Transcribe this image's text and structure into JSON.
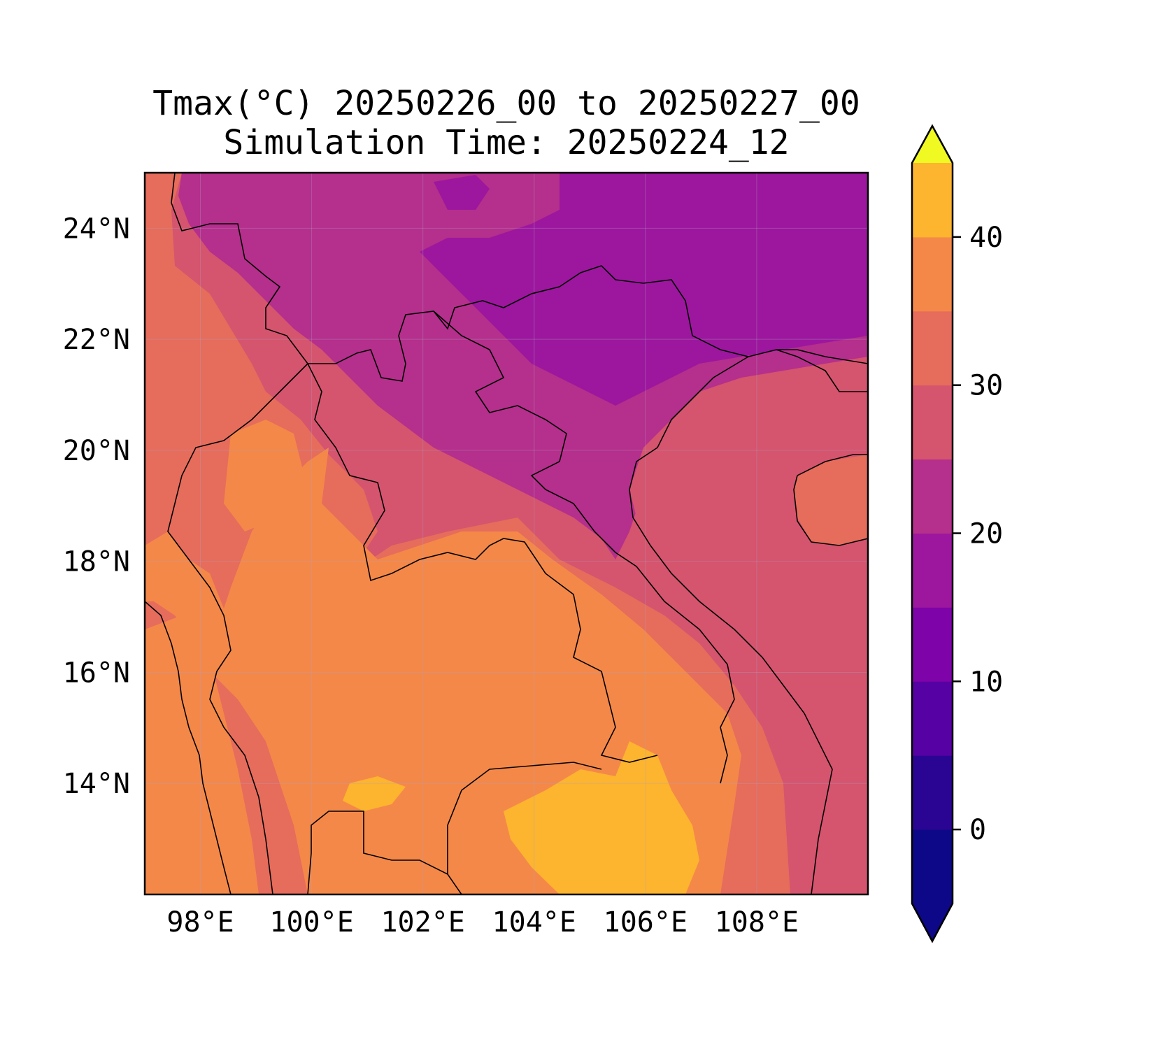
{
  "title": {
    "line1": "Tmax(°C) 20250226_00 to 20250227_00",
    "line2": "Simulation Time: 20250224_12"
  },
  "map": {
    "type": "filled-contour-map",
    "variable": "Tmax(°C)",
    "lon_range": [
      97.0,
      110.0
    ],
    "lat_range": [
      12.0,
      25.0
    ],
    "x_ticks": [
      "98°E",
      "100°E",
      "102°E",
      "104°E",
      "106°E",
      "108°E"
    ],
    "x_tick_values": [
      98,
      100,
      102,
      104,
      106,
      108
    ],
    "y_ticks": [
      "14°N",
      "16°N",
      "18°N",
      "20°N",
      "22°N",
      "24°N"
    ],
    "y_tick_values": [
      14,
      16,
      18,
      20,
      22,
      24
    ],
    "gridlines": true
  },
  "colorbar": {
    "levels": [
      -5,
      0,
      5,
      10,
      15,
      20,
      25,
      30,
      35,
      40,
      45
    ],
    "colors": [
      "#0d0887",
      "#2a0593",
      "#5601a4",
      "#7e03a8",
      "#9c179e",
      "#b52f8c",
      "#d5546e",
      "#e66c5c",
      "#f48849",
      "#fdb42f",
      "#f0f921"
    ],
    "under_color": "#0d0887",
    "over_color": "#f0f921",
    "extend": "both",
    "tick_labels": [
      "0",
      "10",
      "20",
      "30",
      "40"
    ],
    "tick_values": [
      0,
      10,
      20,
      30,
      40
    ]
  }
}
